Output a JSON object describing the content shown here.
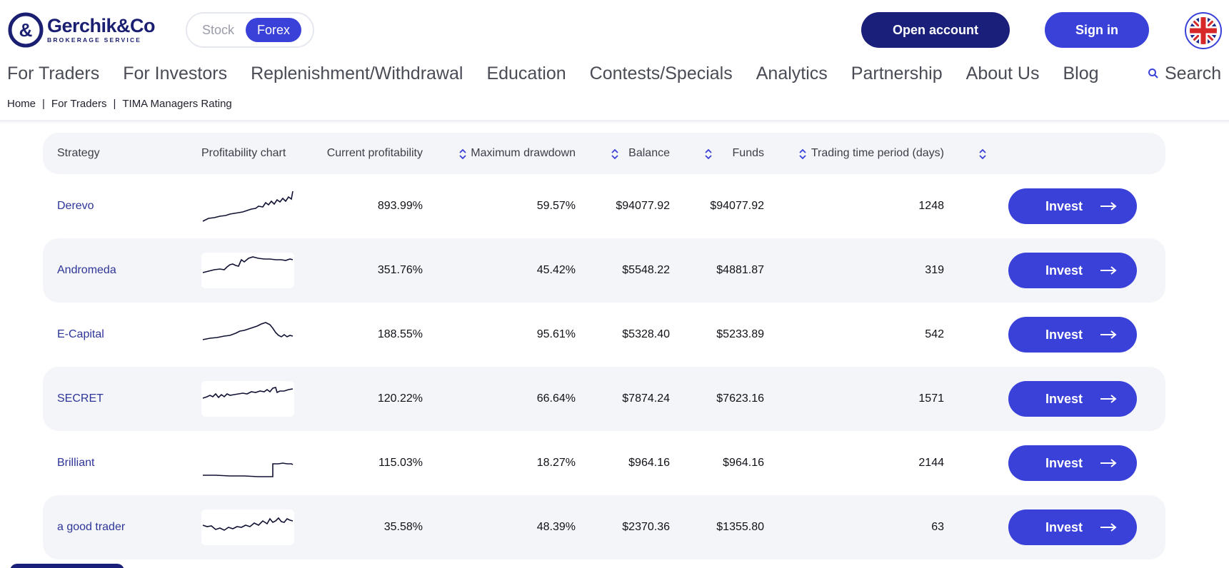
{
  "brand": {
    "name": "Gerchik&Co",
    "tagline": "BROKERAGE SERVICE",
    "primary_color": "#3a41d8",
    "dark_color": "#1a1f7a"
  },
  "market_toggle": {
    "options": [
      "Stock",
      "Forex"
    ],
    "selected": "Forex"
  },
  "header": {
    "open_account_label": "Open account",
    "sign_in_label": "Sign in",
    "language_icon": "uk-flag-icon"
  },
  "nav": {
    "items": [
      "For Traders",
      "For Investors",
      "Replenishment/Withdrawal",
      "Education",
      "Contests/Specials",
      "Analytics",
      "Partnership",
      "About Us",
      "Blog"
    ],
    "search_label": "Search"
  },
  "breadcrumb": [
    "Home",
    "For Traders",
    "TIMA Managers Rating"
  ],
  "table": {
    "columns": [
      "Strategy",
      "Profitability chart",
      "Current profitability",
      "Maximum drawdown",
      "Balance",
      "Funds",
      "Trading time period (days)"
    ],
    "invest_label": "Invest",
    "rows": [
      {
        "strategy": "Derevo",
        "profitability": "893.99%",
        "drawdown": "59.57%",
        "balance": "$94077.92",
        "funds": "$94077.92",
        "days": "1248"
      },
      {
        "strategy": "Andromeda",
        "profitability": "351.76%",
        "drawdown": "45.42%",
        "balance": "$5548.22",
        "funds": "$4881.87",
        "days": "319"
      },
      {
        "strategy": "E-Capital",
        "profitability": "188.55%",
        "drawdown": "95.61%",
        "balance": "$5328.40",
        "funds": "$5233.89",
        "days": "542"
      },
      {
        "strategy": "SECRET",
        "profitability": "120.22%",
        "drawdown": "66.64%",
        "balance": "$7874.24",
        "funds": "$7623.16",
        "days": "1571"
      },
      {
        "strategy": "Brilliant",
        "profitability": "115.03%",
        "drawdown": "18.27%",
        "balance": "$964.16",
        "funds": "$964.16",
        "days": "2144"
      },
      {
        "strategy": "a good trader",
        "profitability": "35.58%",
        "drawdown": "48.39%",
        "balance": "$2370.36",
        "funds": "$1355.80",
        "days": "63"
      }
    ]
  }
}
